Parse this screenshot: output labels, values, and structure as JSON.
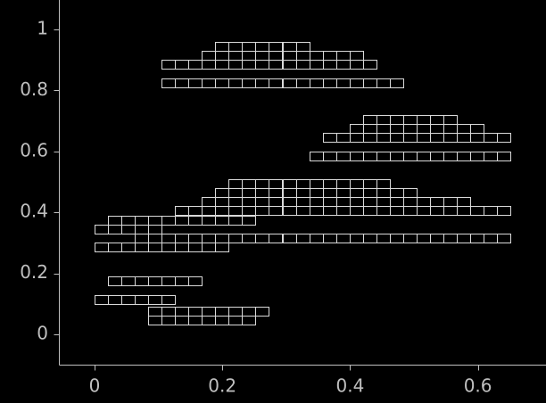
{
  "chart_data": {
    "type": "line",
    "title": "",
    "xlabel": "",
    "ylabel": "",
    "xlim": [
      -0.055,
      0.705
    ],
    "ylim": [
      -0.1,
      1.04
    ],
    "x_ticks": [
      {
        "value": 0,
        "label": "0"
      },
      {
        "value": 0.2,
        "label": "0.2"
      },
      {
        "value": 0.4,
        "label": "0.4"
      },
      {
        "value": 0.6,
        "label": "0.6"
      }
    ],
    "y_ticks": [
      {
        "value": 0,
        "label": "0"
      },
      {
        "value": 0.2,
        "label": "0.2"
      },
      {
        "value": 0.4,
        "label": "0.4"
      },
      {
        "value": 0.6,
        "label": "0.6"
      },
      {
        "value": 0.8,
        "label": "0.8"
      },
      {
        "value": 1,
        "label": "1"
      }
    ],
    "grid": false,
    "series": [
      {
        "style": "square-grid fractal curve (open rectangular cells)",
        "cells_x": [
          [
            0.0,
            0.021,
            0.042,
            0.063,
            0.084,
            0.105,
            0.126,
            0.147,
            0.168,
            0.189
          ],
          [
            0.0,
            0.021,
            0.042,
            0.063,
            0.084
          ],
          [
            0.021,
            0.042,
            0.063,
            0.084,
            0.105,
            0.126,
            0.147,
            0.168,
            0.189,
            0.21,
            0.231
          ],
          [
            0.063,
            0.084,
            0.105,
            0.126,
            0.147,
            0.168,
            0.189,
            0.21,
            0.231,
            0.252,
            0.273,
            0.294,
            0.315,
            0.336,
            0.357,
            0.378,
            0.399,
            0.42,
            0.441,
            0.462,
            0.483,
            0.504,
            0.525,
            0.546,
            0.567,
            0.588,
            0.609,
            0.63
          ],
          [
            0.126,
            0.147,
            0.168,
            0.189,
            0.21,
            0.231,
            0.252,
            0.273,
            0.294,
            0.315,
            0.336,
            0.357,
            0.378,
            0.399,
            0.42,
            0.441,
            0.462,
            0.483,
            0.504,
            0.525,
            0.546,
            0.567,
            0.588,
            0.609,
            0.63
          ],
          [
            0.168,
            0.189,
            0.21,
            0.231,
            0.252,
            0.273,
            0.294,
            0.315,
            0.336,
            0.357,
            0.378,
            0.399,
            0.42,
            0.441,
            0.462,
            0.483,
            0.504,
            0.525,
            0.546,
            0.567
          ],
          [
            0.189,
            0.21,
            0.231,
            0.252,
            0.273,
            0.294,
            0.315,
            0.336,
            0.357,
            0.378,
            0.399,
            0.42,
            0.441,
            0.462,
            0.483
          ],
          [
            0.21,
            0.231,
            0.252,
            0.273,
            0.294,
            0.315,
            0.336,
            0.357,
            0.378,
            0.399,
            0.42,
            0.441
          ],
          [
            0.336,
            0.357,
            0.378,
            0.399,
            0.42,
            0.441,
            0.462,
            0.483,
            0.504,
            0.525,
            0.546,
            0.567,
            0.588,
            0.609,
            0.63
          ],
          [
            0.357,
            0.378,
            0.399,
            0.42,
            0.441,
            0.462,
            0.483,
            0.504,
            0.525,
            0.546,
            0.567,
            0.588,
            0.609,
            0.63
          ],
          [
            0.399,
            0.42,
            0.441,
            0.462,
            0.483,
            0.504,
            0.525,
            0.546,
            0.567,
            0.588
          ],
          [
            0.42,
            0.441,
            0.462,
            0.483,
            0.504,
            0.525,
            0.546
          ],
          [
            0.105,
            0.126,
            0.147,
            0.168,
            0.189,
            0.21,
            0.231,
            0.252,
            0.273,
            0.294,
            0.315,
            0.336,
            0.357,
            0.378,
            0.399,
            0.42,
            0.441,
            0.462
          ],
          [
            0.105,
            0.126,
            0.147,
            0.168,
            0.189,
            0.21,
            0.231,
            0.252,
            0.273,
            0.294,
            0.315,
            0.336,
            0.357,
            0.378,
            0.399,
            0.42
          ],
          [
            0.168,
            0.189,
            0.21,
            0.231,
            0.252,
            0.273,
            0.294,
            0.315,
            0.336,
            0.357,
            0.378,
            0.399
          ],
          [
            0.189,
            0.21,
            0.231,
            0.252,
            0.273,
            0.294,
            0.315
          ],
          [
            0.0,
            0.021,
            0.042,
            0.063,
            0.084,
            0.105
          ],
          [
            0.021,
            0.042,
            0.063,
            0.084,
            0.105,
            0.126,
            0.147
          ],
          [
            0.084,
            0.105,
            0.126,
            0.147,
            0.168,
            0.189,
            0.21,
            0.231,
            0.252
          ],
          [
            0.084,
            0.105,
            0.126,
            0.147,
            0.168,
            0.189,
            0.21,
            0.231
          ]
        ],
        "cells_y": [
          0.27,
          0.33,
          0.36,
          0.3,
          0.39,
          0.42,
          0.45,
          0.48,
          0.57,
          0.63,
          0.66,
          0.69,
          0.81,
          0.87,
          0.9,
          0.93,
          0.1,
          0.16,
          0.06,
          0.03
        ],
        "cell_size": [
          0.021,
          0.03
        ]
      }
    ]
  },
  "colors": {
    "background": "#000000",
    "axis": "#bfbfbf",
    "line": "#d9d9d9",
    "tick_label": "#bfbfbf"
  }
}
